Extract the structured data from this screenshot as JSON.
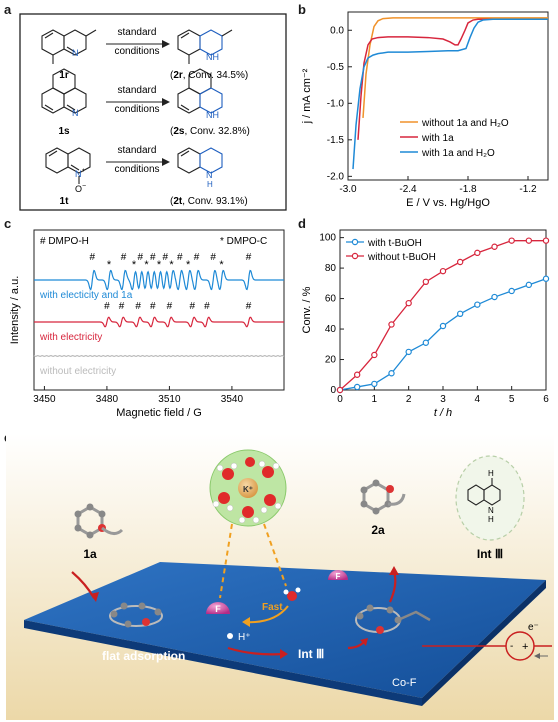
{
  "panels": {
    "a": "a",
    "b": "b",
    "c": "c",
    "d": "d",
    "e": "e"
  },
  "panel_a": {
    "reactions": [
      {
        "reactant": "1r",
        "conditions_top": "standard",
        "conditions_bottom": "conditions",
        "product": "2r",
        "conversion": ", Conv. 34.5%)"
      },
      {
        "reactant": "1s",
        "conditions_top": "standard",
        "conditions_bottom": "conditions",
        "product": "2s",
        "conversion": ", Conv. 32.8%)"
      },
      {
        "reactant": "1t",
        "conditions_top": "standard",
        "conditions_bottom": "conditions",
        "product": "2t",
        "conversion": ", Conv. 93.1%)"
      }
    ],
    "atoms": {
      "N": "N",
      "H": "H",
      "O": "O",
      "plus": "+",
      "minus": "−"
    }
  },
  "chart_data": [
    {
      "type": "line",
      "panel": "b",
      "xlabel": "E / V vs. Hg/HgO",
      "ylabel": "j / mA cm⁻²",
      "xlim": [
        -3.0,
        -1.0
      ],
      "ylim": [
        -2.05,
        0.25
      ],
      "xticks": [
        "-3.0",
        "-2.4",
        "-1.8",
        "-1.2"
      ],
      "yticks": [
        "0.0",
        "-0.5",
        "-1.0",
        "-1.5",
        "-2.0"
      ],
      "extra_ytick": "0.0",
      "legend_position": "bottom-right",
      "series": [
        {
          "name": "without 1a and H₂O",
          "color": "#f0922b",
          "x": [
            -2.85,
            -2.82,
            -2.78,
            -2.74,
            -2.7,
            -2.65,
            -2.55,
            -2.4,
            -2.0,
            -1.6,
            -1.0
          ],
          "y": [
            -1.2,
            -0.6,
            -0.2,
            0.05,
            0.13,
            0.16,
            0.17,
            0.17,
            0.17,
            0.17,
            0.17
          ]
        },
        {
          "name": "with 1a",
          "color": "#d7263d",
          "x": [
            -2.9,
            -2.87,
            -2.84,
            -2.8,
            -2.76,
            -2.7,
            -2.6,
            -2.4,
            -2.2,
            -2.05,
            -1.98,
            -1.93,
            -1.9,
            -1.87,
            -1.83,
            -1.8,
            -1.75,
            -1.7,
            -1.5,
            -1.2,
            -1.0
          ],
          "y": [
            -1.5,
            -0.9,
            -0.45,
            -0.2,
            -0.12,
            -0.1,
            -0.09,
            -0.09,
            -0.1,
            -0.12,
            -0.16,
            -0.2,
            -0.2,
            -0.12,
            0.0,
            0.1,
            0.14,
            0.15,
            0.15,
            0.15,
            0.15
          ]
        },
        {
          "name": "with 1a and H₂O",
          "color": "#1f8ad6",
          "x": [
            -2.95,
            -2.92,
            -2.88,
            -2.84,
            -2.8,
            -2.75,
            -2.7,
            -2.6,
            -2.4,
            -2.2,
            -2.0,
            -1.9,
            -1.82,
            -1.78,
            -1.74,
            -1.7,
            -1.65,
            -1.55,
            -1.4,
            -1.2,
            -1.0
          ],
          "y": [
            -1.9,
            -1.3,
            -0.8,
            -0.5,
            -0.38,
            -0.34,
            -0.32,
            -0.3,
            -0.3,
            -0.29,
            -0.28,
            -0.28,
            -0.25,
            -0.1,
            0.03,
            0.11,
            0.14,
            0.15,
            0.15,
            0.15,
            0.15
          ]
        }
      ]
    },
    {
      "type": "line",
      "panel": "c",
      "xlabel": "Magnetic field / G",
      "ylabel": "Intensity / a.u.",
      "xlim": [
        3445,
        3565
      ],
      "xticks": [
        "3450",
        "3480",
        "3510",
        "3540"
      ],
      "legend": {
        "hash": "# DMPO-H",
        "star": "* DMPO-C"
      },
      "markers": {
        "hash": "#",
        "star": "*"
      },
      "traces": [
        {
          "name": "with electicity and 1a",
          "color": "#1f8ad6",
          "hash_positions": [
            3473,
            3488,
            3496,
            3502,
            3508,
            3515,
            3523,
            3531,
            3548
          ],
          "star_positions": [
            3481,
            3493,
            3499,
            3505,
            3511,
            3519,
            3535
          ]
        },
        {
          "name": "with electricity",
          "color": "#d7263d",
          "hash_positions": [
            3480,
            3487,
            3495,
            3502,
            3510,
            3521,
            3528,
            3548
          ]
        },
        {
          "name": "without electricity",
          "color": "#bbbbbb"
        }
      ]
    },
    {
      "type": "line",
      "panel": "d",
      "xlabel": "t / h",
      "ylabel": "Conv. / %",
      "xlim": [
        0,
        6
      ],
      "ylim": [
        0,
        105
      ],
      "xticks": [
        "0",
        "1",
        "2",
        "3",
        "4",
        "5",
        "6"
      ],
      "yticks": [
        "0",
        "20",
        "40",
        "60",
        "80",
        "100"
      ],
      "legend_position": "top-left",
      "series": [
        {
          "name": "with t-BuOH",
          "color": "#1f8ad6",
          "x": [
            0,
            0.5,
            1,
            1.5,
            2,
            2.5,
            3,
            3.5,
            4,
            4.5,
            5,
            5.5,
            6
          ],
          "y": [
            0,
            2,
            4,
            11,
            25,
            31,
            42,
            50,
            56,
            61,
            65,
            69,
            73
          ]
        },
        {
          "name": "without t-BuOH",
          "color": "#d7263d",
          "x": [
            0,
            0.5,
            1,
            1.5,
            2,
            2.5,
            3,
            3.5,
            4,
            4.5,
            5,
            5.5,
            6
          ],
          "y": [
            0,
            10,
            23,
            43,
            57,
            71,
            78,
            84,
            90,
            94,
            98,
            98,
            98
          ]
        }
      ]
    }
  ],
  "panel_e": {
    "labels": {
      "reactant": "1a",
      "product": "2a",
      "intermediate_label": "Int Ⅲ",
      "surface_intermediate": "Int Ⅲ",
      "flat_adsorption": "flat adsorption",
      "fast": "Fast",
      "cation": "K⁺",
      "fluoride": "F",
      "proton": "H⁺",
      "electron": "e⁻",
      "surface": "Co-F",
      "minus": "-",
      "plus": "+",
      "int_N": "N",
      "int_H_top": "H",
      "int_H_bottom": "H"
    }
  }
}
